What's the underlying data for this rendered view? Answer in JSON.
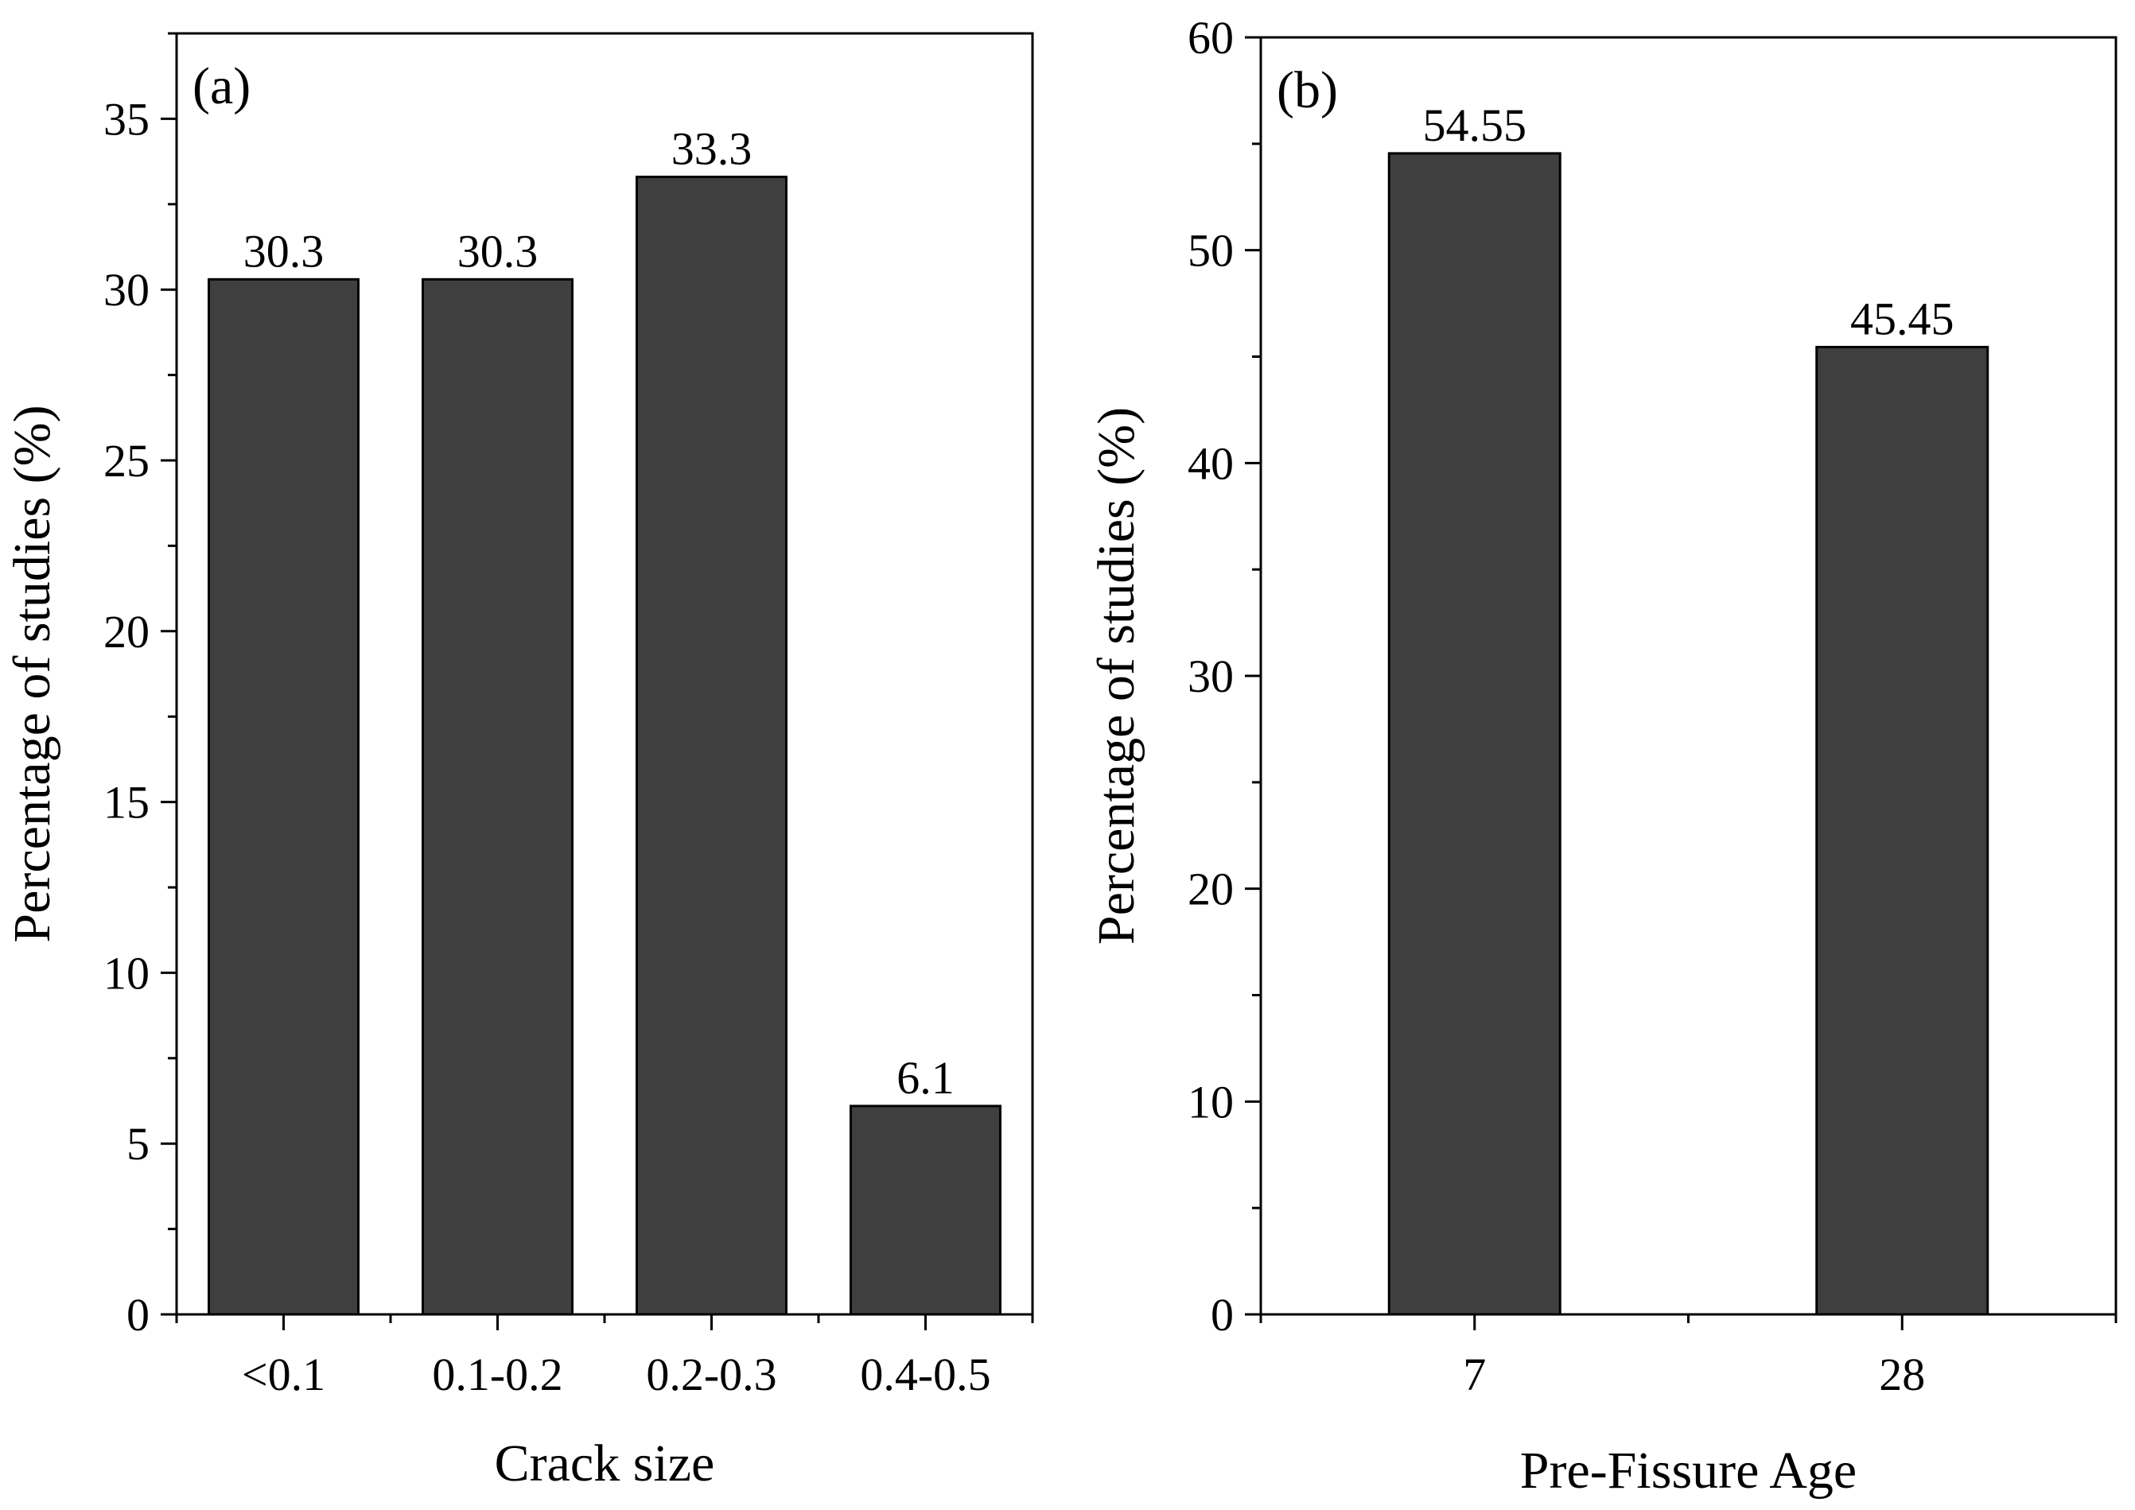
{
  "chart_data": [
    {
      "panel": "(a)",
      "type": "bar",
      "categories": [
        "<0.1",
        "0.1-0.2",
        "0.2-0.3",
        "0.4-0.5"
      ],
      "values": [
        30.3,
        30.3,
        33.3,
        6.1
      ],
      "data_labels": [
        "30.3",
        "30.3",
        "33.3",
        "6.1"
      ],
      "xlabel": "Crack size",
      "ylabel": "Percentage of studies (%)",
      "ylim": [
        0,
        37.5
      ],
      "yticks": [
        0,
        5,
        10,
        15,
        20,
        25,
        30,
        35
      ],
      "bar_color": "#3f3f3f"
    },
    {
      "panel": "(b)",
      "type": "bar",
      "categories": [
        "7",
        "28"
      ],
      "values": [
        54.55,
        45.45
      ],
      "data_labels": [
        "54.55",
        "45.45"
      ],
      "xlabel": "Pre-Fissure Age",
      "ylabel": "Percentage of studies (%)",
      "ylim": [
        0,
        60
      ],
      "yticks": [
        0,
        10,
        20,
        30,
        40,
        50,
        60
      ],
      "bar_color": "#3f3f3f"
    }
  ]
}
